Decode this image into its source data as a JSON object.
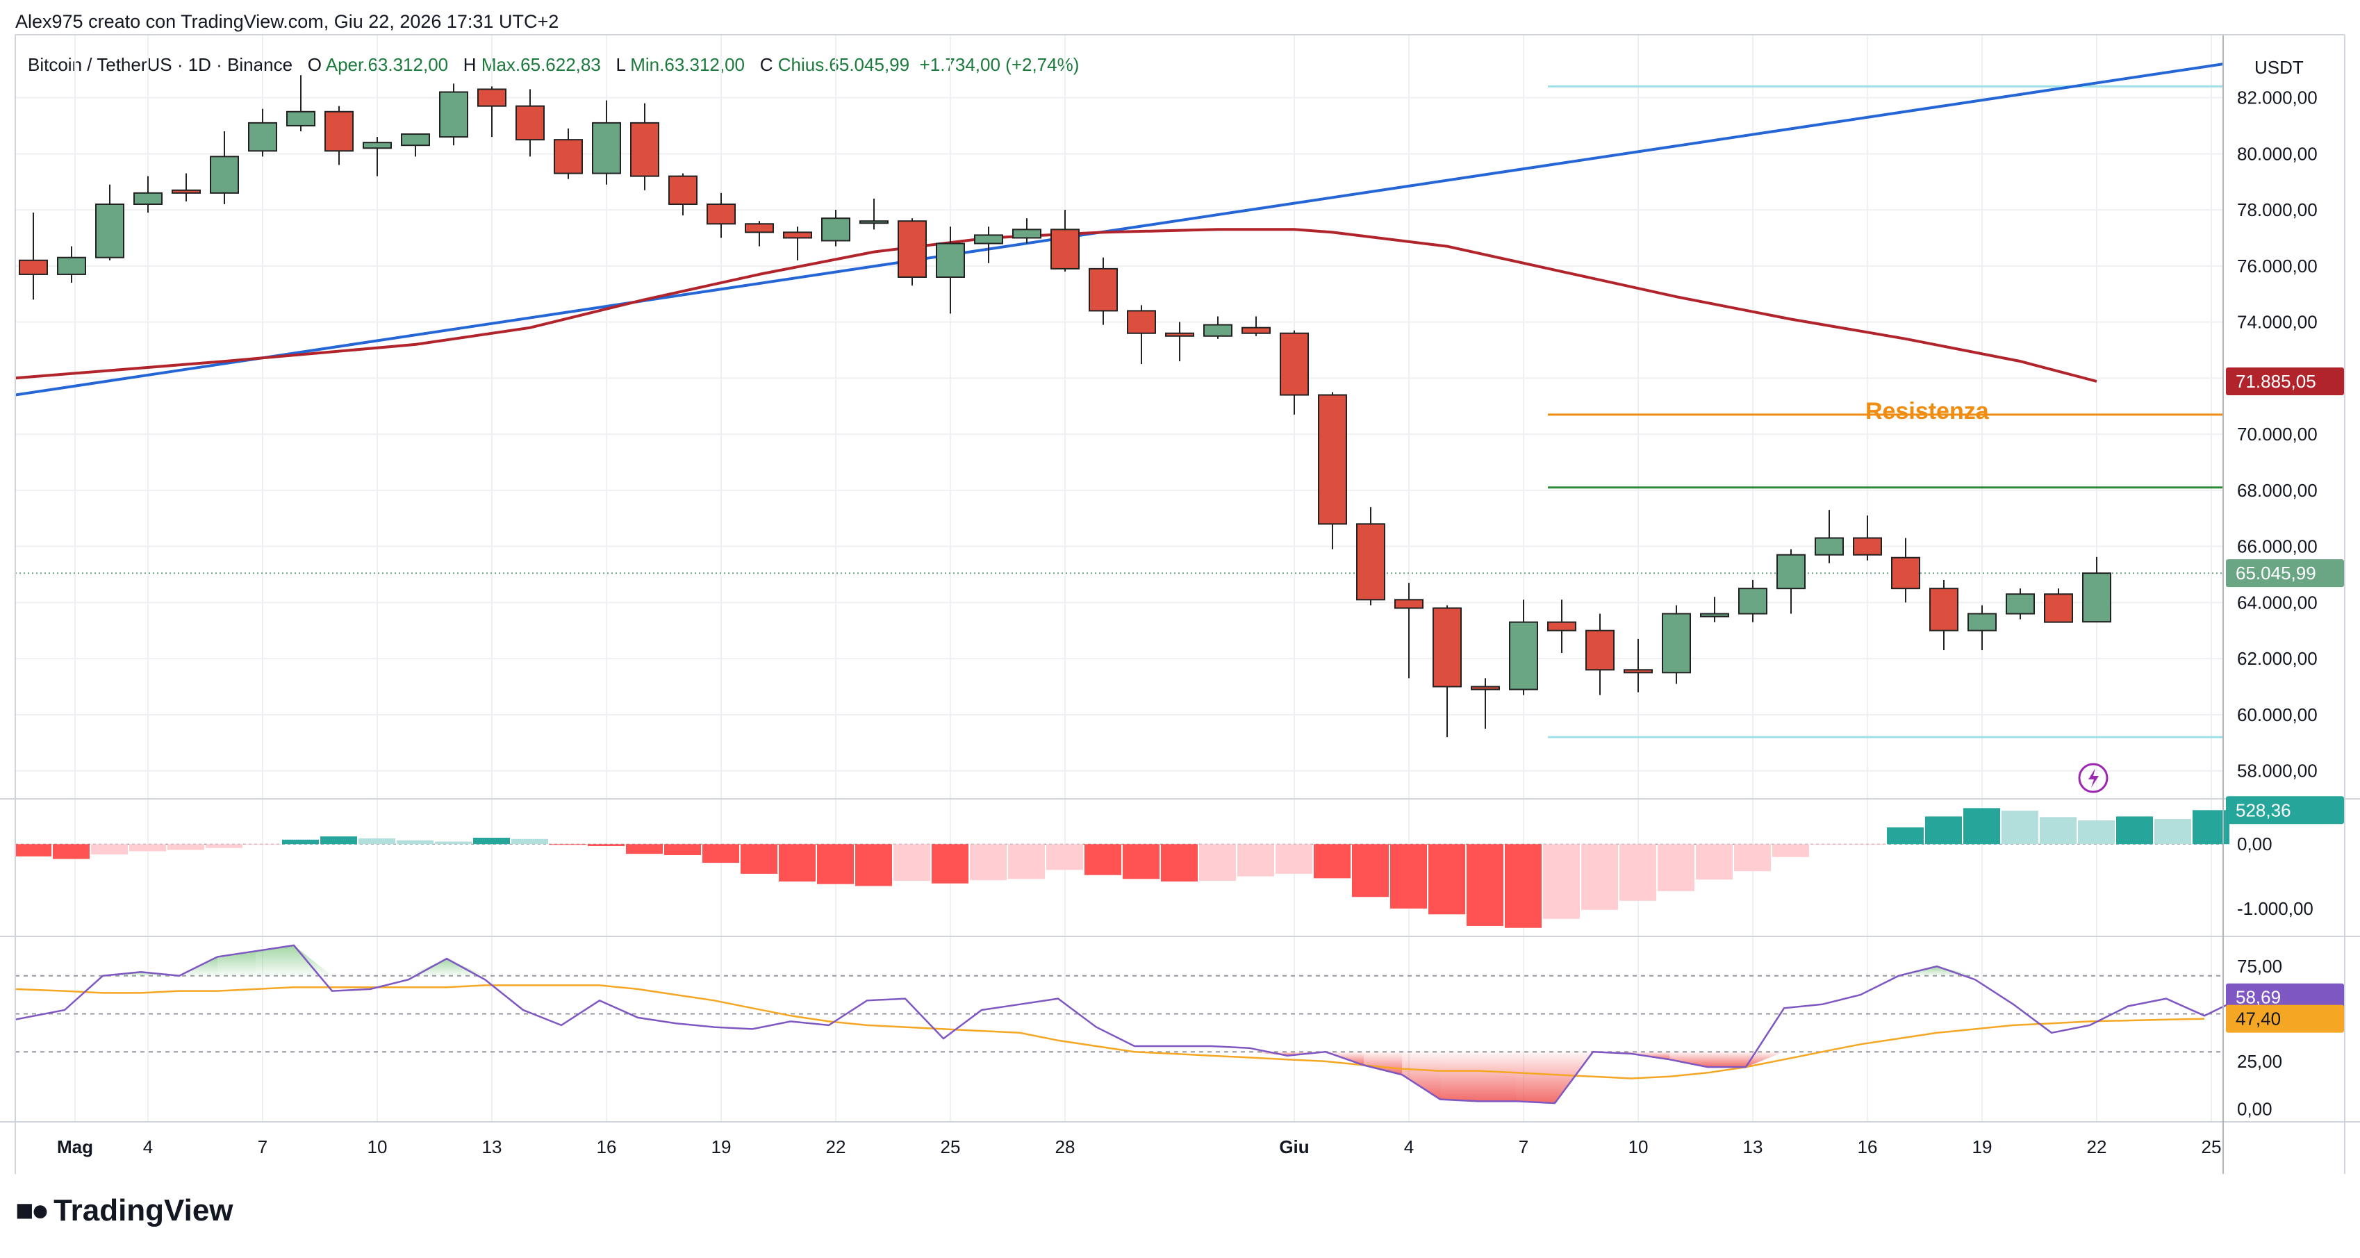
{
  "header": {
    "credit": "Alex975 creato con TradingView.com, Giu 22, 2026 17:31 UTC+2"
  },
  "legend": {
    "symbol": "Bitcoin / TetherUS · 1D · Binance",
    "open_label": "O",
    "open": "Aper.63.312,00",
    "high_label": "H",
    "high": "Max.65.622,83",
    "low_label": "L",
    "low": "Min.63.312,00",
    "close_label": "C",
    "close": "Chius.65.045,99",
    "change": "+1.734,00 (+2,74%)"
  },
  "currency": "USDT",
  "annotation": {
    "resistance_label": "Resistenza"
  },
  "price_badges": {
    "ma": "71.885,05",
    "last": "65.045,99",
    "macd": "528,36",
    "rsi": "58,69",
    "rsi_ma": "47,40"
  },
  "logo": {
    "text": "TradingView"
  },
  "colors": {
    "up": "#6aa584",
    "down": "#dc4f3f",
    "ma_red": "#b2242b",
    "trend_blue": "#2466d6",
    "resistance": "#f08c10",
    "support_green": "#2e8b3a",
    "cyan": "#9fe0e6",
    "rsi": "#7e57c2",
    "rsi_ma": "#f5a623"
  },
  "chart_data": [
    {
      "type": "candlestick",
      "title": "Bitcoin / TetherUS · 1D · Binance",
      "ylim": [
        57000,
        83500
      ],
      "y_ticks": [
        "58.000,00",
        "60.000,00",
        "62.000,00",
        "64.000,00",
        "66.000,00",
        "68.000,00",
        "70.000,00",
        "72.000,00",
        "74.000,00",
        "76.000,00",
        "78.000,00",
        "80.000,00",
        "82.000,00"
      ],
      "x_ticks": [
        "Mag",
        "4",
        "7",
        "10",
        "13",
        "16",
        "19",
        "22",
        "25",
        "28",
        "Giu",
        "4",
        "7",
        "10",
        "13",
        "16",
        "19",
        "22",
        "25"
      ],
      "x_tick_index": [
        0,
        3,
        6,
        9,
        12,
        15,
        18,
        21,
        24,
        27,
        33,
        36,
        39,
        42,
        45,
        48,
        51,
        54,
        57
      ],
      "candles": [
        [
          76200,
          77900,
          74800,
          75700
        ],
        [
          75700,
          76700,
          75400,
          76300
        ],
        [
          76300,
          78900,
          76200,
          78200
        ],
        [
          78200,
          79200,
          77900,
          78600
        ],
        [
          78700,
          79300,
          78300,
          78600
        ],
        [
          78600,
          80800,
          78200,
          79900
        ],
        [
          80100,
          81600,
          79900,
          81100
        ],
        [
          81000,
          82800,
          80800,
          81500
        ],
        [
          81500,
          81700,
          79600,
          80100
        ],
        [
          80200,
          80600,
          79200,
          80400
        ],
        [
          80300,
          80700,
          79900,
          80700
        ],
        [
          80600,
          82500,
          80300,
          82200
        ],
        [
          82300,
          82400,
          80600,
          81700
        ],
        [
          81700,
          82300,
          79900,
          80500
        ],
        [
          80500,
          80900,
          79100,
          79300
        ],
        [
          79300,
          81900,
          78900,
          81100
        ],
        [
          81100,
          81800,
          78700,
          79200
        ],
        [
          79200,
          79300,
          77800,
          78200
        ],
        [
          78200,
          78600,
          77000,
          77500
        ],
        [
          77500,
          77600,
          76700,
          77200
        ],
        [
          77200,
          77400,
          76200,
          77000
        ],
        [
          76900,
          78000,
          76700,
          77700
        ],
        [
          77600,
          78400,
          77300,
          77600
        ],
        [
          77600,
          77700,
          75300,
          75600
        ],
        [
          75600,
          77400,
          74300,
          76800
        ],
        [
          76800,
          77400,
          76100,
          77100
        ],
        [
          77000,
          77700,
          76800,
          77300
        ],
        [
          77300,
          78000,
          75800,
          75900
        ],
        [
          75900,
          76300,
          73900,
          74400
        ],
        [
          74400,
          74600,
          72500,
          73600
        ],
        [
          73600,
          74000,
          72600,
          73500
        ],
        [
          73500,
          74200,
          73400,
          73900
        ],
        [
          73800,
          74200,
          73500,
          73600
        ],
        [
          73600,
          73700,
          70700,
          71400
        ],
        [
          71400,
          71500,
          65900,
          66800
        ],
        [
          66800,
          67400,
          63900,
          64100
        ],
        [
          64100,
          64700,
          61300,
          63800
        ],
        [
          63800,
          63900,
          59200,
          61000
        ],
        [
          61000,
          61300,
          59500,
          60900
        ],
        [
          60900,
          64100,
          60700,
          63300
        ],
        [
          63300,
          64100,
          62200,
          63000
        ],
        [
          63000,
          63600,
          60700,
          61600
        ],
        [
          61600,
          62700,
          60800,
          61500
        ],
        [
          61500,
          63900,
          61100,
          63600
        ],
        [
          63500,
          64200,
          63300,
          63600
        ],
        [
          63600,
          64800,
          63300,
          64500
        ],
        [
          64500,
          65900,
          63600,
          65700
        ],
        [
          65700,
          67300,
          65400,
          66300
        ],
        [
          66300,
          67100,
          65500,
          65700
        ],
        [
          65600,
          66300,
          64000,
          64500
        ],
        [
          64500,
          64800,
          62300,
          63000
        ],
        [
          63000,
          63900,
          62300,
          63600
        ],
        [
          63600,
          64500,
          63400,
          64300
        ],
        [
          64300,
          64500,
          63300,
          63300
        ],
        [
          63312,
          65623,
          63312,
          65046
        ]
      ],
      "moving_average_red": [
        [
          0,
          72000
        ],
        [
          5,
          72600
        ],
        [
          10,
          73200
        ],
        [
          13,
          73800
        ],
        [
          16,
          74800
        ],
        [
          19,
          75700
        ],
        [
          22,
          76500
        ],
        [
          25,
          77000
        ],
        [
          28,
          77200
        ],
        [
          31,
          77300
        ],
        [
          33,
          77300
        ],
        [
          34,
          77200
        ],
        [
          37,
          76700
        ],
        [
          40,
          75800
        ],
        [
          43,
          74900
        ],
        [
          46,
          74100
        ],
        [
          49,
          73400
        ],
        [
          52,
          72600
        ],
        [
          54,
          71885
        ]
      ],
      "trendline_blue": [
        [
          0,
          71400
        ],
        [
          57.6,
          83200
        ]
      ],
      "resistance_line": {
        "value": 70700,
        "from_index": 40
      },
      "green_line": {
        "value": 68100,
        "from_index": 40
      },
      "cyan_upper": {
        "value": 82400,
        "from_index": 40
      },
      "cyan_lower": {
        "value": 59200,
        "from_index": 40
      },
      "last_price": 65045.99
    },
    {
      "type": "bar",
      "title": "MACD histogram",
      "ylim": [
        -1400,
        650
      ],
      "y_ticks": [
        "0,00",
        "-1.000,00"
      ],
      "values": [
        -190,
        -230,
        -160,
        -110,
        -90,
        -60,
        -10,
        70,
        120,
        90,
        60,
        40,
        100,
        80,
        -10,
        -30,
        -150,
        -170,
        -290,
        -460,
        -580,
        -620,
        -650,
        -570,
        -610,
        -560,
        -540,
        -400,
        -480,
        -540,
        -580,
        -570,
        -500,
        -460,
        -530,
        -820,
        -1000,
        -1090,
        -1270,
        -1300,
        -1160,
        -1020,
        -880,
        -730,
        -550,
        -420,
        -200,
        -10,
        -10,
        260,
        430,
        560,
        520,
        420,
        370,
        430,
        390,
        528
      ],
      "up_colors_strong": "#26a69a",
      "up_colors_light": "#b2dfdb",
      "down_colors_strong": "#ff5252",
      "down_colors_light": "#ffcdd2"
    },
    {
      "type": "line",
      "title": "RSI",
      "ylim": [
        -5,
        90
      ],
      "y_ticks": [
        "75,00",
        "50,00",
        "25,00",
        "0,00"
      ],
      "bands": [
        70,
        50,
        30
      ],
      "rsi": [
        47,
        52,
        70,
        72,
        70,
        80,
        83,
        86,
        62,
        63,
        68,
        79,
        68,
        52,
        44,
        57,
        48,
        45,
        43,
        42,
        46,
        44,
        57,
        58,
        37,
        52,
        55,
        58,
        43,
        33,
        33,
        33,
        32,
        28,
        30,
        23,
        18,
        5,
        4,
        4,
        3,
        30,
        29,
        26,
        22,
        22,
        53,
        55,
        60,
        70,
        75,
        68,
        55,
        40,
        44,
        54,
        58,
        49,
        58.69
      ],
      "rsi_ma": [
        63,
        62,
        61,
        61,
        62,
        62,
        63,
        64,
        64,
        64,
        64,
        64,
        65,
        65,
        65,
        65,
        63,
        60,
        57,
        53,
        49,
        46,
        44,
        43,
        42,
        41,
        40,
        36,
        33,
        30,
        29,
        28,
        27,
        26,
        25,
        23,
        21,
        20,
        20,
        19,
        18,
        17,
        16,
        17,
        19,
        22,
        26,
        30,
        34,
        37,
        40,
        42,
        44,
        45,
        46,
        46.5,
        47,
        47.4
      ],
      "last_rsi": 58.69,
      "last_rsi_ma": 47.4
    }
  ]
}
